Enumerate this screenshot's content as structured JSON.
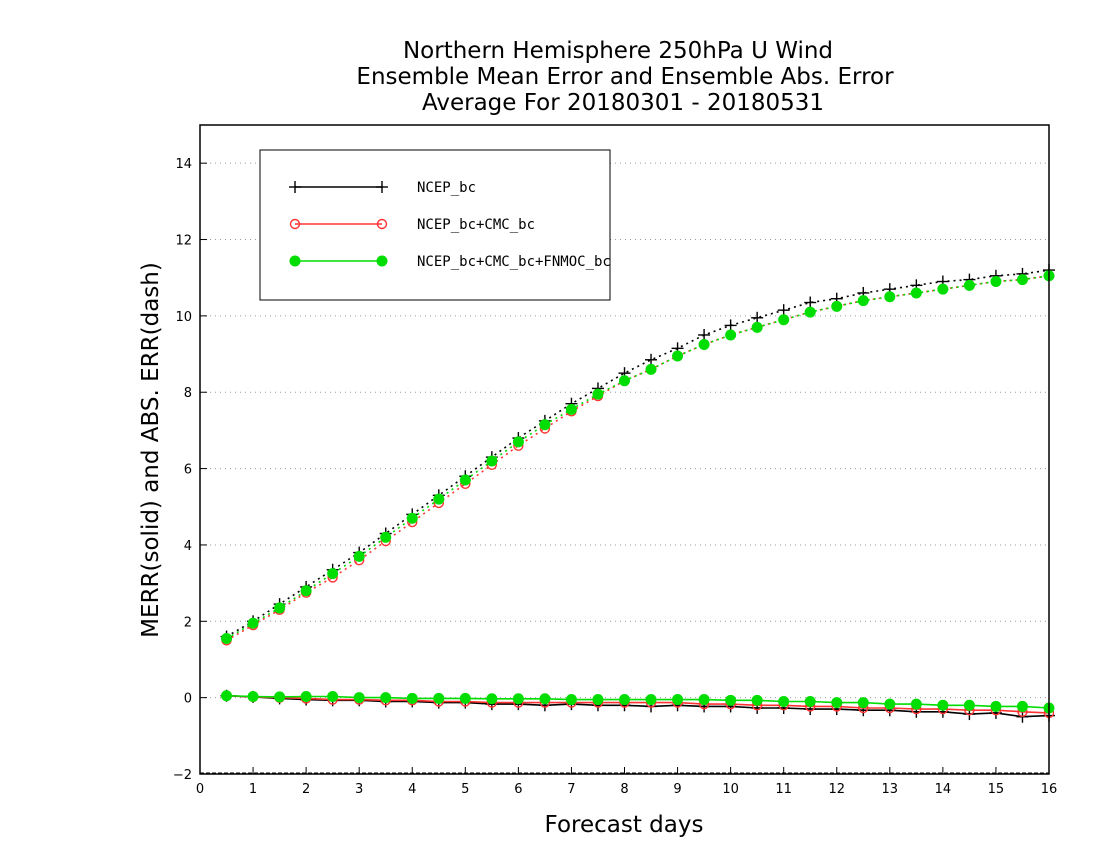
{
  "chart_data": {
    "type": "line",
    "title": [
      "Northern Hemisphere 250hPa U Wind",
      "Ensemble Mean Error and Ensemble Abs. Error",
      "Average For 20180301 - 20180531"
    ],
    "xlabel": "Forecast days",
    "ylabel": "MERR(solid) and ABS. ERR(dash)",
    "xlim": [
      0,
      16
    ],
    "ylim": [
      -2,
      15
    ],
    "xticks": [
      0,
      1,
      2,
      3,
      4,
      5,
      6,
      7,
      8,
      9,
      10,
      11,
      12,
      13,
      14,
      15,
      16
    ],
    "yticks": [
      -2,
      0,
      2,
      4,
      6,
      8,
      10,
      12,
      14
    ],
    "grid": "horizontal dotted",
    "legend_position": "top-left",
    "x": [
      0.5,
      1,
      1.5,
      2,
      2.5,
      3,
      3.5,
      4,
      4.5,
      5,
      5.5,
      6,
      6.5,
      7,
      7.5,
      8,
      8.5,
      9,
      9.5,
      10,
      10.5,
      11,
      11.5,
      12,
      12.5,
      13,
      13.5,
      14,
      14.5,
      15,
      15.5,
      16
    ],
    "series": [
      {
        "name": "NCEP_bc",
        "color": "#000000",
        "marker": "plus",
        "abs_err": [
          1.6,
          2.0,
          2.45,
          2.9,
          3.35,
          3.8,
          4.3,
          4.8,
          5.3,
          5.8,
          6.3,
          6.8,
          7.25,
          7.7,
          8.1,
          8.5,
          8.85,
          9.15,
          9.5,
          9.75,
          9.95,
          10.15,
          10.35,
          10.45,
          10.6,
          10.7,
          10.8,
          10.9,
          10.95,
          11.05,
          11.1,
          11.2
        ],
        "mean_err": [
          0.05,
          0.02,
          -0.02,
          -0.05,
          -0.07,
          -0.07,
          -0.1,
          -0.1,
          -0.13,
          -0.13,
          -0.17,
          -0.17,
          -0.2,
          -0.17,
          -0.2,
          -0.2,
          -0.23,
          -0.2,
          -0.23,
          -0.23,
          -0.27,
          -0.27,
          -0.3,
          -0.3,
          -0.33,
          -0.33,
          -0.37,
          -0.37,
          -0.43,
          -0.4,
          -0.5,
          -0.47
        ]
      },
      {
        "name": "NCEP_bc+CMC_bc",
        "color": "#ff3333",
        "marker": "open-circle",
        "abs_err": [
          1.5,
          1.9,
          2.3,
          2.75,
          3.15,
          3.6,
          4.1,
          4.6,
          5.1,
          5.6,
          6.1,
          6.6,
          7.05,
          7.5,
          7.9,
          8.3,
          8.6,
          8.95,
          9.25,
          9.5,
          9.7,
          9.9,
          10.1,
          10.25,
          10.4,
          10.5,
          10.6,
          10.7,
          10.8,
          10.9,
          10.95,
          11.05
        ],
        "mean_err": [
          0.05,
          0.02,
          0.0,
          -0.02,
          -0.05,
          -0.05,
          -0.07,
          -0.07,
          -0.1,
          -0.1,
          -0.13,
          -0.13,
          -0.13,
          -0.13,
          -0.13,
          -0.13,
          -0.13,
          -0.13,
          -0.17,
          -0.17,
          -0.2,
          -0.2,
          -0.23,
          -0.23,
          -0.27,
          -0.27,
          -0.3,
          -0.3,
          -0.33,
          -0.33,
          -0.37,
          -0.4
        ]
      },
      {
        "name": "NCEP_bc+CMC_bc+FNMOC_bc",
        "color": "#00dd00",
        "marker": "filled-circle",
        "abs_err": [
          1.55,
          1.95,
          2.35,
          2.8,
          3.25,
          3.7,
          4.2,
          4.7,
          5.2,
          5.7,
          6.2,
          6.7,
          7.15,
          7.55,
          7.95,
          8.3,
          8.6,
          8.95,
          9.25,
          9.5,
          9.7,
          9.9,
          10.1,
          10.25,
          10.4,
          10.5,
          10.6,
          10.7,
          10.8,
          10.9,
          10.95,
          11.05
        ],
        "mean_err": [
          0.05,
          0.03,
          0.02,
          0.03,
          0.03,
          0.0,
          0.0,
          -0.02,
          -0.02,
          -0.02,
          -0.03,
          -0.03,
          -0.03,
          -0.05,
          -0.05,
          -0.05,
          -0.05,
          -0.05,
          -0.05,
          -0.07,
          -0.07,
          -0.1,
          -0.1,
          -0.13,
          -0.13,
          -0.17,
          -0.17,
          -0.2,
          -0.2,
          -0.23,
          -0.23,
          -0.27
        ]
      }
    ]
  }
}
